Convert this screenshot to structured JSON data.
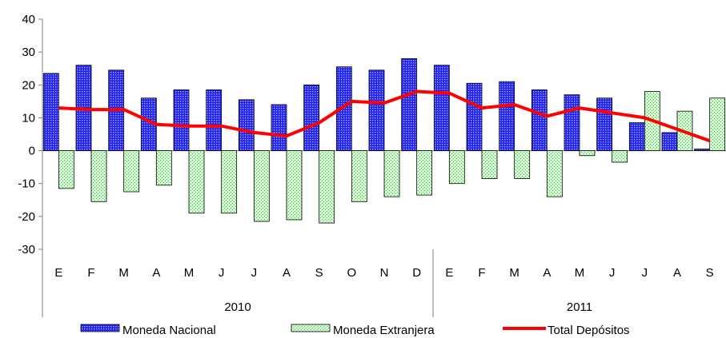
{
  "chart_data": {
    "type": "bar",
    "title": "",
    "xlabel": "",
    "ylabel": "",
    "ylim": [
      -30,
      40
    ],
    "yticks": [
      -30,
      -20,
      -10,
      0,
      10,
      20,
      30,
      40
    ],
    "grid": false,
    "legend_position": "bottom",
    "categories": [
      "E",
      "F",
      "M",
      "A",
      "M",
      "J",
      "J",
      "A",
      "S",
      "O",
      "N",
      "D",
      "E",
      "F",
      "M",
      "A",
      "M",
      "J",
      "J",
      "A",
      "S"
    ],
    "groups": [
      {
        "label": "2010",
        "start": 0,
        "end": 11
      },
      {
        "label": "2011",
        "start": 12,
        "end": 20
      }
    ],
    "series": [
      {
        "name": "Moneda Nacional",
        "kind": "bar",
        "color": "#3333ff",
        "values": [
          23.5,
          26,
          24.5,
          16,
          18.5,
          18.5,
          15.5,
          14,
          20,
          25.5,
          24.5,
          28,
          26,
          20.5,
          21,
          18.5,
          17,
          16,
          8.5,
          5.5,
          0.5
        ]
      },
      {
        "name": "Moneda Extranjera",
        "kind": "bar",
        "color": "#ccffcc",
        "values": [
          -11.5,
          -15.5,
          -12.5,
          -10.5,
          -19,
          -19,
          -21.5,
          -21,
          -22,
          -15.5,
          -14,
          -13.5,
          -10,
          -8.5,
          -8.5,
          -14,
          -1.5,
          -3.5,
          18,
          12,
          16
        ]
      },
      {
        "name": "Total Depósitos",
        "kind": "line",
        "color": "#ff0000",
        "values": [
          13,
          12.5,
          12.5,
          8,
          7.5,
          7.5,
          5.5,
          4.5,
          8.5,
          15,
          14.5,
          18,
          17.5,
          13,
          14,
          10.5,
          13,
          11.5,
          10,
          6.5,
          3
        ]
      }
    ]
  }
}
